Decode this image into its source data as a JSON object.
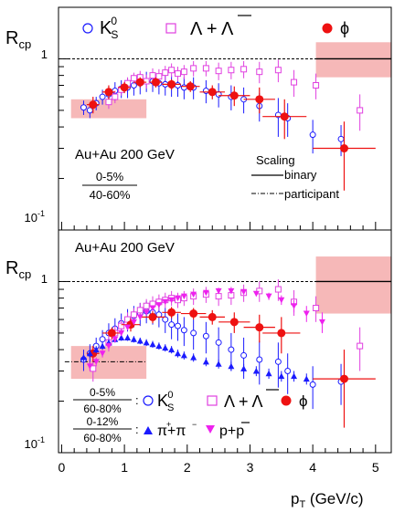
{
  "figure": {
    "x_axis_label": "p",
    "x_axis_label_sub": "T",
    "x_axis_label_unit": " (GeV/c)",
    "x_ticks": [
      0,
      1,
      2,
      3,
      4,
      5
    ],
    "colors": {
      "ks": "#1a1aff",
      "lambda": "#e040e0",
      "phi": "#ee1111",
      "pion": "#1a1aff",
      "proton": "#ee22ee",
      "band": "#f6b8b8"
    }
  },
  "top_panel": {
    "ylabel": "R",
    "ylabel_sub": "cp",
    "ytick_1": "1",
    "ytick_01": "10",
    "ytick_01_exp": "-1",
    "legend_ks": "K",
    "legend_ks_sub": "S",
    "legend_ks_sup": "0",
    "legend_lambda": "Λ + Λ",
    "legend_phi": "ϕ",
    "system": "Au+Au 200 GeV",
    "cent_num": "0-5%",
    "cent_den": "40-60%",
    "scaling_title": "Scaling",
    "scaling_binary": "binary",
    "scaling_participant": "participant"
  },
  "bottom_panel": {
    "ylabel": "R",
    "ylabel_sub": "cp",
    "ytick_1": "1",
    "ytick_01": "10",
    "ytick_01_exp": "-1",
    "system": "Au+Au 200 GeV",
    "cent1_num": "0-5%",
    "cent1_den": "60-80%",
    "cent2_num": "0-12%",
    "cent2_den": "60-80%",
    "legend_ks": "K",
    "legend_ks_sub": "S",
    "legend_ks_sup": "0",
    "legend_lambda": "Λ + Λ",
    "legend_phi": "ϕ",
    "legend_pion": "π+π",
    "legend_proton": "p+p"
  },
  "chart_data": [
    {
      "type": "scatter",
      "xlim": [
        -0.05,
        5.25
      ],
      "ylim": [
        0.1,
        2.0
      ],
      "yscale": "log",
      "series": [
        {
          "name": "K0S",
          "marker": "open-circle",
          "x": [
            0.35,
            0.45,
            0.55,
            0.65,
            0.75,
            0.85,
            0.95,
            1.05,
            1.15,
            1.25,
            1.35,
            1.45,
            1.55,
            1.65,
            1.75,
            1.85,
            1.95,
            2.1,
            2.3,
            2.5,
            2.7,
            2.9,
            3.15,
            3.45,
            3.6,
            4.0,
            4.45
          ],
          "y": [
            0.52,
            0.5,
            0.55,
            0.6,
            0.62,
            0.65,
            0.67,
            0.68,
            0.7,
            0.72,
            0.74,
            0.74,
            0.72,
            0.71,
            0.7,
            0.7,
            0.68,
            0.68,
            0.65,
            0.62,
            0.6,
            0.58,
            0.53,
            0.47,
            0.45,
            0.36,
            0.34
          ],
          "err": [
            0.05,
            0.05,
            0.05,
            0.06,
            0.07,
            0.08,
            0.08,
            0.09,
            0.09,
            0.1,
            0.1,
            0.1,
            0.1,
            0.1,
            0.1,
            0.1,
            0.1,
            0.1,
            0.1,
            0.1,
            0.1,
            0.1,
            0.1,
            0.12,
            0.1,
            0.08,
            0.07
          ]
        },
        {
          "name": "Lambda+AntiLambda",
          "marker": "open-square",
          "x": [
            0.75,
            0.85,
            0.95,
            1.05,
            1.15,
            1.25,
            1.35,
            1.45,
            1.55,
            1.65,
            1.75,
            1.85,
            1.95,
            2.1,
            2.3,
            2.5,
            2.7,
            2.9,
            3.15,
            3.45,
            3.7,
            4.05,
            4.75
          ],
          "y": [
            0.56,
            0.6,
            0.66,
            0.72,
            0.77,
            0.78,
            0.74,
            0.8,
            0.79,
            0.83,
            0.86,
            0.82,
            0.84,
            0.88,
            0.88,
            0.85,
            0.86,
            0.87,
            0.84,
            0.86,
            0.73,
            0.7,
            0.5
          ],
          "err": [
            0.05,
            0.05,
            0.05,
            0.06,
            0.06,
            0.07,
            0.07,
            0.08,
            0.08,
            0.08,
            0.08,
            0.08,
            0.08,
            0.09,
            0.09,
            0.1,
            0.1,
            0.1,
            0.12,
            0.13,
            0.13,
            0.12,
            0.12
          ]
        },
        {
          "name": "phi",
          "marker": "filled-circle",
          "x": [
            0.5,
            0.75,
            1.0,
            1.25,
            1.5,
            1.75,
            2.05,
            2.4,
            2.75,
            3.15,
            3.55,
            4.5
          ],
          "y": [
            0.54,
            0.64,
            0.68,
            0.73,
            0.73,
            0.71,
            0.69,
            0.64,
            0.61,
            0.58,
            0.46,
            0.3
          ],
          "err": [
            0.06,
            0.06,
            0.05,
            0.05,
            0.05,
            0.05,
            0.05,
            0.06,
            0.08,
            0.1,
            0.12,
            0.13
          ],
          "xerr": [
            0.1,
            0.1,
            0.1,
            0.1,
            0.1,
            0.15,
            0.15,
            0.2,
            0.25,
            0.25,
            0.35,
            0.5
          ]
        }
      ],
      "reference_lines": [
        {
          "y": 1.0,
          "style": "dashed"
        }
      ],
      "systematic_bands": [
        {
          "x": [
            0.15,
            1.35
          ],
          "y": [
            0.45,
            0.58
          ]
        },
        {
          "x": [
            4.05,
            5.25
          ],
          "y": [
            0.78,
            1.25
          ]
        }
      ]
    },
    {
      "type": "scatter",
      "xlim": [
        -0.05,
        5.25
      ],
      "ylim": [
        0.1,
        2.0
      ],
      "yscale": "log",
      "series": [
        {
          "name": "K0S",
          "marker": "open-circle",
          "x": [
            0.35,
            0.45,
            0.55,
            0.65,
            0.75,
            0.85,
            0.95,
            1.05,
            1.15,
            1.25,
            1.35,
            1.45,
            1.55,
            1.65,
            1.75,
            1.85,
            1.95,
            2.1,
            2.3,
            2.5,
            2.7,
            2.9,
            3.15,
            3.45,
            3.6,
            4.0,
            4.45
          ],
          "y": [
            0.35,
            0.38,
            0.42,
            0.46,
            0.5,
            0.53,
            0.57,
            0.6,
            0.63,
            0.65,
            0.67,
            0.66,
            0.64,
            0.6,
            0.56,
            0.55,
            0.52,
            0.5,
            0.48,
            0.44,
            0.4,
            0.37,
            0.35,
            0.34,
            0.3,
            0.25,
            0.26
          ],
          "err": [
            0.05,
            0.05,
            0.05,
            0.06,
            0.07,
            0.08,
            0.08,
            0.09,
            0.09,
            0.1,
            0.1,
            0.1,
            0.1,
            0.1,
            0.1,
            0.1,
            0.1,
            0.1,
            0.1,
            0.1,
            0.1,
            0.1,
            0.1,
            0.1,
            0.08,
            0.07,
            0.07
          ]
        },
        {
          "name": "Lambda+AntiLambda",
          "marker": "open-square",
          "x": [
            0.5,
            0.75,
            0.85,
            0.95,
            1.05,
            1.15,
            1.25,
            1.35,
            1.45,
            1.55,
            1.65,
            1.75,
            1.85,
            1.95,
            2.1,
            2.3,
            2.5,
            2.7,
            2.9,
            3.15,
            3.45,
            3.7,
            4.05,
            4.75
          ],
          "y": [
            0.31,
            0.44,
            0.5,
            0.55,
            0.6,
            0.64,
            0.68,
            0.72,
            0.74,
            0.76,
            0.78,
            0.8,
            0.78,
            0.8,
            0.82,
            0.84,
            0.82,
            0.83,
            0.86,
            0.88,
            0.9,
            0.76,
            0.7,
            0.42
          ],
          "err": [
            0.05,
            0.05,
            0.05,
            0.05,
            0.06,
            0.06,
            0.07,
            0.07,
            0.08,
            0.08,
            0.08,
            0.08,
            0.08,
            0.08,
            0.09,
            0.09,
            0.1,
            0.1,
            0.1,
            0.12,
            0.13,
            0.13,
            0.12,
            0.12
          ]
        },
        {
          "name": "phi",
          "marker": "filled-circle",
          "x": [
            0.5,
            0.8,
            1.1,
            1.45,
            1.75,
            2.1,
            2.4,
            2.75,
            3.15,
            3.5,
            4.5
          ],
          "y": [
            0.38,
            0.5,
            0.56,
            0.62,
            0.66,
            0.65,
            0.62,
            0.58,
            0.54,
            0.5,
            0.27
          ],
          "err": [
            0.04,
            0.04,
            0.05,
            0.05,
            0.05,
            0.05,
            0.06,
            0.08,
            0.1,
            0.12,
            0.13
          ],
          "xerr": [
            0.1,
            0.15,
            0.15,
            0.2,
            0.15,
            0.2,
            0.2,
            0.25,
            0.25,
            0.3,
            0.5
          ]
        },
        {
          "name": "pi++pi-",
          "marker": "filled-triangle-up",
          "x": [
            0.35,
            0.45,
            0.55,
            0.65,
            0.75,
            0.85,
            0.95,
            1.05,
            1.15,
            1.25,
            1.35,
            1.45,
            1.55,
            1.65,
            1.75,
            1.85,
            1.95,
            2.1,
            2.3,
            2.5,
            2.7,
            2.9,
            3.1,
            3.3,
            3.5,
            3.7,
            3.9
          ],
          "y": [
            0.36,
            0.38,
            0.4,
            0.42,
            0.44,
            0.46,
            0.47,
            0.47,
            0.46,
            0.45,
            0.44,
            0.43,
            0.42,
            0.41,
            0.4,
            0.38,
            0.37,
            0.36,
            0.34,
            0.33,
            0.32,
            0.31,
            0.3,
            0.29,
            0.28,
            0.28,
            0.27
          ],
          "err": [
            0.02,
            0.02,
            0.02,
            0.02,
            0.02,
            0.02,
            0.02,
            0.02,
            0.02,
            0.02,
            0.02,
            0.02,
            0.02,
            0.02,
            0.02,
            0.02,
            0.02,
            0.02,
            0.02,
            0.02,
            0.02,
            0.02,
            0.02,
            0.02,
            0.02,
            0.02,
            0.02
          ]
        },
        {
          "name": "p+pbar",
          "marker": "filled-triangle-down",
          "x": [
            0.45,
            0.55,
            0.65,
            0.75,
            0.85,
            0.95,
            1.05,
            1.15,
            1.25,
            1.35,
            1.45,
            1.55,
            1.65,
            1.75,
            1.85,
            1.95,
            2.1,
            2.3,
            2.5,
            2.7,
            2.9,
            3.1,
            3.3,
            3.5,
            3.7,
            3.9,
            4.15
          ],
          "y": [
            0.32,
            0.34,
            0.38,
            0.42,
            0.46,
            0.5,
            0.54,
            0.58,
            0.62,
            0.66,
            0.7,
            0.73,
            0.76,
            0.78,
            0.8,
            0.82,
            0.84,
            0.86,
            0.88,
            0.88,
            0.87,
            0.85,
            0.82,
            0.78,
            0.72,
            0.65,
            0.58
          ],
          "err": [
            0.02,
            0.02,
            0.02,
            0.02,
            0.02,
            0.02,
            0.02,
            0.02,
            0.02,
            0.02,
            0.02,
            0.02,
            0.02,
            0.02,
            0.02,
            0.02,
            0.02,
            0.02,
            0.03,
            0.03,
            0.03,
            0.03,
            0.04,
            0.05,
            0.06,
            0.07,
            0.08
          ]
        }
      ],
      "reference_lines": [
        {
          "y": 1.0,
          "style": "dashed"
        },
        {
          "y": 0.34,
          "x": [
            0.05,
            1.35
          ],
          "style": "dash-dot"
        }
      ],
      "systematic_bands": [
        {
          "x": [
            0.15,
            1.35
          ],
          "y": [
            0.27,
            0.42
          ]
        },
        {
          "x": [
            4.05,
            5.25
          ],
          "y": [
            0.65,
            1.4
          ]
        }
      ]
    }
  ]
}
